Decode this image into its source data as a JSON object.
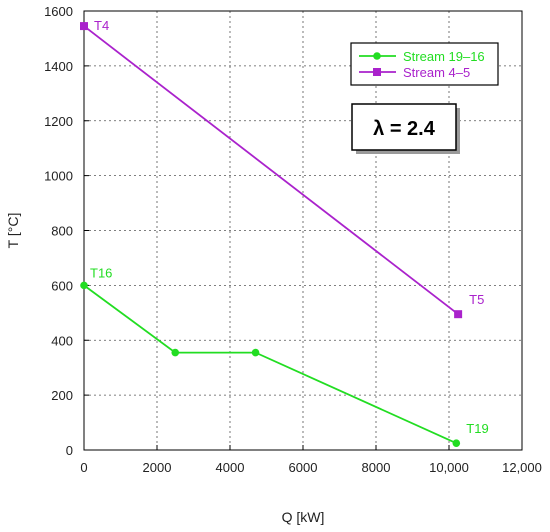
{
  "chart_data": {
    "type": "line",
    "xlabel": "Q [kW]",
    "ylabel": "T [°C]",
    "xlim": [
      0,
      12000
    ],
    "ylim": [
      0,
      1600
    ],
    "x_ticks": [
      0,
      2000,
      4000,
      6000,
      8000,
      10000,
      12000
    ],
    "x_tick_labels": [
      "0",
      "2000",
      "4000",
      "6000",
      "8000",
      "10,000",
      "12,000"
    ],
    "y_ticks": [
      0,
      200,
      400,
      600,
      800,
      1000,
      1200,
      1400,
      1600
    ],
    "y_tick_labels": [
      "0",
      "200",
      "400",
      "600",
      "800",
      "1000",
      "1200",
      "1400",
      "1600"
    ],
    "grid": true,
    "legend_position": "top-right",
    "series": [
      {
        "name": "Stream 19–16",
        "color": "#22dd22",
        "marker": "circle",
        "x": [
          0,
          2500,
          4700,
          10200
        ],
        "y": [
          600,
          355,
          355,
          25
        ]
      },
      {
        "name": "Stream 4–5",
        "color": "#aa22cc",
        "marker": "square",
        "x": [
          0,
          10250
        ],
        "y": [
          1545,
          495
        ]
      }
    ],
    "annotations": [
      {
        "text": "T4",
        "x": 0,
        "y": 1545,
        "color": "#aa22cc"
      },
      {
        "text": "T5",
        "x": 10250,
        "y": 495,
        "color": "#aa22cc"
      },
      {
        "text": "T16",
        "x": 0,
        "y": 600,
        "color": "#22dd22"
      },
      {
        "text": "T19",
        "x": 10200,
        "y": 25,
        "color": "#22dd22"
      }
    ],
    "info_box": {
      "symbol": "λ",
      "text": "= 2.4"
    }
  }
}
